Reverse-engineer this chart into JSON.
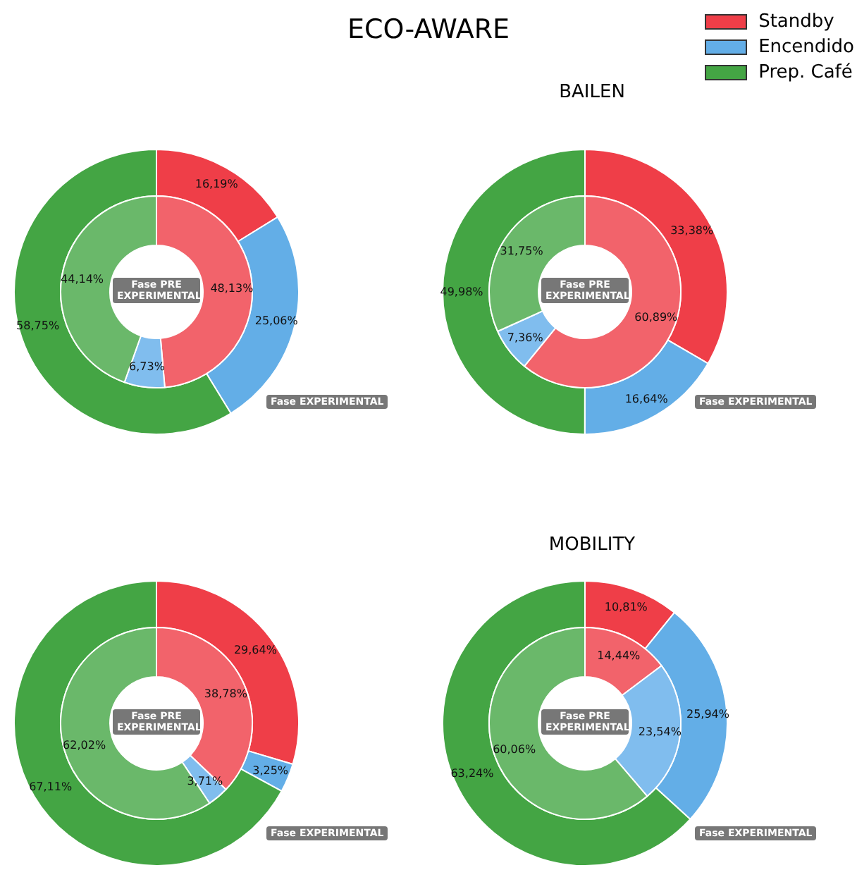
{
  "chart_data": [
    {
      "type": "donut",
      "title": "ECO-AWARE",
      "legend": "top right",
      "categories": [
        "Standby",
        "Encendido",
        "Prep. Café"
      ],
      "series": [
        {
          "name": "Fase EXPERIMENTAL",
          "values": [
            16.19,
            25.06,
            58.75
          ],
          "value_labels": [
            "16,19%",
            "25,06%",
            "58,75%"
          ],
          "colors": [
            "#ef3e48",
            "#63aee7",
            "#44a544"
          ]
        },
        {
          "name": "Fase PRE EXPERIMENTAL",
          "values": [
            48.13,
            6.73,
            44.14
          ],
          "value_labels": [
            "48,13%",
            "6,73%",
            "44,14%"
          ],
          "colors": [
            "#f2636b",
            "#80bdee",
            "#6ab86a"
          ]
        }
      ]
    },
    {
      "type": "donut",
      "title": "BAILEN",
      "categories": [
        null,
        null,
        null
      ],
      "series": [
        {
          "name": "Fase EXPERIMENTAL",
          "values": [
            33.38,
            16.64,
            49.98
          ],
          "value_labels": [
            "33,38%",
            "16,64%",
            "49,98%"
          ],
          "colors": [
            "#ef3e48",
            "#63aee7",
            "#44a544"
          ]
        },
        {
          "name": "Fase PRE EXPERIMENTAL",
          "values": [
            60.89,
            7.36,
            31.75
          ],
          "value_labels": [
            "60,89%",
            "7,36%",
            "31,75%"
          ],
          "colors": [
            "#f2636b",
            "#80bdee",
            "#6ab86a"
          ]
        }
      ]
    },
    {
      "type": "donut",
      "categories": [
        null,
        null,
        null
      ],
      "series": [
        {
          "name": "Fase EXPERIMENTAL",
          "values": [
            29.64,
            3.25,
            67.11
          ],
          "value_labels": [
            "29,64%",
            "3,25%",
            "67,11%"
          ],
          "colors": [
            "#ef3e48",
            "#63aee7",
            "#44a544"
          ]
        },
        {
          "name": "Fase PRE EXPERIMENTAL",
          "values": [
            38.78,
            3.71,
            62.02
          ],
          "value_labels": [
            "38,78%",
            "3,71%",
            "62,02%"
          ],
          "colors": [
            "#f2636b",
            "#80bdee",
            "#6ab86a"
          ]
        }
      ]
    },
    {
      "type": "donut",
      "title": "MOBILITY",
      "categories": [
        null,
        null,
        null
      ],
      "series": [
        {
          "name": "Fase EXPERIMENTAL",
          "values": [
            10.81,
            25.94,
            63.24
          ],
          "value_labels": [
            "10,81%",
            "25,94%",
            "63,24%"
          ],
          "colors": [
            "#ef3e48",
            "#63aee7",
            "#44a544"
          ]
        },
        {
          "name": "Fase PRE EXPERIMENTAL",
          "values": [
            14.44,
            23.54,
            60.06
          ],
          "value_labels": [
            "14,44%",
            "23,54%",
            "60,06%"
          ],
          "colors": [
            "#f2636b",
            "#80bdee",
            "#6ab86a"
          ]
        }
      ]
    }
  ]
}
